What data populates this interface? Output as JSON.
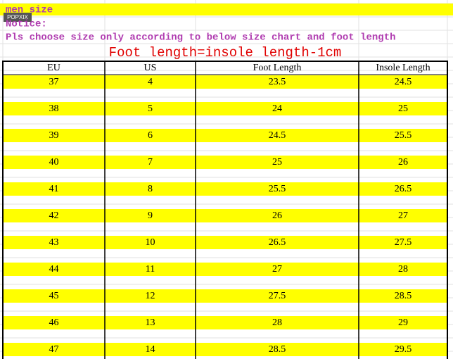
{
  "header": {
    "sheet_title": "men size",
    "watermark": "POPXIX",
    "notice": "Notice:",
    "instruction": "Pls choose size only according to below size chart and foot length",
    "formula": "Foot length=insole length-1cm"
  },
  "table": {
    "columns": [
      "EU",
      "US",
      "Foot Length",
      "Insole Length"
    ],
    "rows": [
      [
        "37",
        "4",
        "23.5",
        "24.5"
      ],
      [
        "38",
        "5",
        "24",
        "25"
      ],
      [
        "39",
        "6",
        "24.5",
        "25.5"
      ],
      [
        "40",
        "7",
        "25",
        "26"
      ],
      [
        "41",
        "8",
        "25.5",
        "26.5"
      ],
      [
        "42",
        "9",
        "26",
        "27"
      ],
      [
        "43",
        "10",
        "26.5",
        "27.5"
      ],
      [
        "44",
        "11",
        "27",
        "28"
      ],
      [
        "45",
        "12",
        "27.5",
        "28.5"
      ],
      [
        "46",
        "13",
        "28",
        "29"
      ],
      [
        "47",
        "14",
        "28.5",
        "29.5"
      ]
    ]
  }
}
